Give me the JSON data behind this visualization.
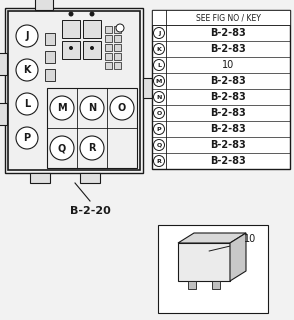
{
  "bg_color": "#f2f2f2",
  "white": "#ffffff",
  "black": "#1a1a1a",
  "gray_box": "#e8e8e8",
  "gray_dark": "#b0b0b0",
  "title_label": "B-2-20",
  "table_header": "SEE FIG NO / KEY",
  "table_rows": [
    {
      "key": "J",
      "value": "B-2-83"
    },
    {
      "key": "K",
      "value": "B-2-83"
    },
    {
      "key": "L",
      "value": "10"
    },
    {
      "key": "M",
      "value": "B-2-83"
    },
    {
      "key": "N",
      "value": "B-2-83"
    },
    {
      "key": "O",
      "value": "B-2-83"
    },
    {
      "key": "P",
      "value": "B-2-83"
    },
    {
      "key": "Q",
      "value": "B-2-83"
    },
    {
      "key": "R",
      "value": "B-2-83"
    }
  ],
  "relay_label": "10",
  "figsize": [
    2.94,
    3.2
  ],
  "dpi": 100
}
